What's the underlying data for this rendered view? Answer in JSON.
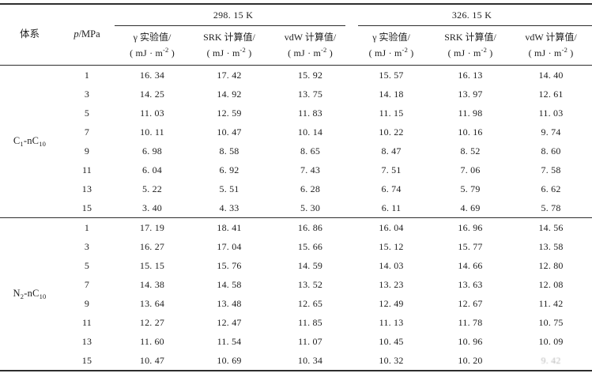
{
  "header": {
    "system": "体系",
    "pressure": {
      "symbol": "p",
      "rest": "/MPa"
    },
    "unit": {
      "pre": "( mJ · m",
      "sup": "-2",
      "post": " )"
    },
    "groups": [
      {
        "temperature": "298. 15 K",
        "columns": [
          {
            "name": "gamma-experimental",
            "line1": "γ 实验值/"
          },
          {
            "name": "srk-calculated",
            "line1": "SRK 计算值/"
          },
          {
            "name": "vdw-calculated",
            "line1": "vdW 计算值/"
          }
        ]
      },
      {
        "temperature": "326. 15 K",
        "columns": [
          {
            "name": "gamma-experimental",
            "line1": "γ 实验值/"
          },
          {
            "name": "srk-calculated",
            "line1": "SRK 计算值/"
          },
          {
            "name": "vdw-calculated",
            "line1": "vdW 计算值/"
          }
        ]
      }
    ]
  },
  "groups": [
    {
      "label": {
        "e1": "C",
        "s1": "1",
        "m": "-nC",
        "s2": "10"
      },
      "rows": [
        {
          "p": "1",
          "values": [
            "16. 34",
            "17. 42",
            "15. 92",
            "15. 57",
            "16. 13",
            "14. 40"
          ]
        },
        {
          "p": "3",
          "values": [
            "14. 25",
            "14. 92",
            "13. 75",
            "14. 18",
            "13. 97",
            "12. 61"
          ]
        },
        {
          "p": "5",
          "values": [
            "11. 03",
            "12. 59",
            "11. 83",
            "11. 15",
            "11. 98",
            "11. 03"
          ]
        },
        {
          "p": "7",
          "values": [
            "10. 11",
            "10. 47",
            "10. 14",
            "10. 22",
            "10. 16",
            "9. 74"
          ]
        },
        {
          "p": "9",
          "values": [
            "6. 98",
            "8. 58",
            "8. 65",
            "8. 47",
            "8. 52",
            "8. 60"
          ]
        },
        {
          "p": "11",
          "values": [
            "6. 04",
            "6. 92",
            "7. 43",
            "7. 51",
            "7. 06",
            "7. 58"
          ]
        },
        {
          "p": "13",
          "values": [
            "5. 22",
            "5. 51",
            "6. 28",
            "6. 74",
            "5. 79",
            "6. 62"
          ]
        },
        {
          "p": "15",
          "values": [
            "3. 40",
            "4. 33",
            "5. 30",
            "6. 11",
            "4. 69",
            "5. 78"
          ]
        }
      ]
    },
    {
      "label": {
        "e1": "N",
        "s1": "2",
        "m": "-nC",
        "s2": "10"
      },
      "rows": [
        {
          "p": "1",
          "values": [
            "17. 19",
            "18. 41",
            "16. 86",
            "16. 04",
            "16. 96",
            "14. 56"
          ]
        },
        {
          "p": "3",
          "values": [
            "16. 27",
            "17. 04",
            "15. 66",
            "15. 12",
            "15. 77",
            "13. 58"
          ]
        },
        {
          "p": "5",
          "values": [
            "15. 15",
            "15. 76",
            "14. 59",
            "14. 03",
            "14. 66",
            "12. 80"
          ]
        },
        {
          "p": "7",
          "values": [
            "14. 38",
            "14. 58",
            "13. 52",
            "13. 23",
            "13. 63",
            "12. 08"
          ]
        },
        {
          "p": "9",
          "values": [
            "13. 64",
            "13. 48",
            "12. 65",
            "12. 49",
            "12. 67",
            "11. 42"
          ]
        },
        {
          "p": "11",
          "values": [
            "12. 27",
            "12. 47",
            "11. 85",
            "11. 13",
            "11. 78",
            "10. 75"
          ]
        },
        {
          "p": "13",
          "values": [
            "11. 60",
            "11. 54",
            "11. 07",
            "10. 45",
            "10. 96",
            "10. 09"
          ]
        },
        {
          "p": "15",
          "values": [
            "10. 47",
            "10. 69",
            "10. 34",
            "10. 32",
            "10. 20",
            {
              "text": "9. 42",
              "faded": true
            }
          ]
        }
      ]
    }
  ],
  "colors": {
    "rule": "#2e2e2e",
    "text": "#1c1c1c",
    "faded_text": "#bdbdbd",
    "background": "#ffffff"
  }
}
